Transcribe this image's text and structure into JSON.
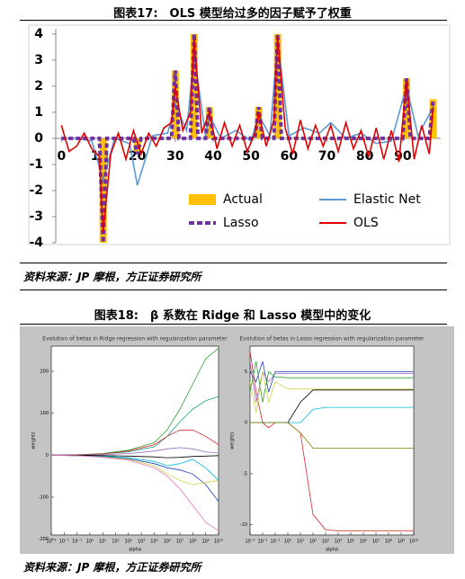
{
  "document": {
    "figure17_title": "图表17:　OLS 模型给过多的因子赋予了权重",
    "source1": "资料来源：JP 摩根，方正证券研究所",
    "figure18_title": "图表18:　β 系数在 Ridge 和 Lasso 模型中的变化",
    "source2": "资料来源：JP 摩根，方正证券研究所"
  },
  "chart_data": [
    {
      "type": "combo",
      "xlim": [
        -1.5,
        100
      ],
      "ylim": [
        -4,
        4.2
      ],
      "xticks": [
        0,
        10,
        20,
        30,
        40,
        50,
        60,
        70,
        80,
        90
      ],
      "yticks": [
        -4,
        -3,
        -2,
        -1,
        0,
        1,
        2,
        3,
        4
      ],
      "legend": "lower right",
      "series": [
        {
          "name": "Actual",
          "style": "bar",
          "color": "#ffc000",
          "x": [
            11,
            20,
            30,
            35,
            39,
            52,
            57,
            91,
            98
          ],
          "values": [
            -4,
            -0.5,
            2.6,
            4,
            1.2,
            1.2,
            4,
            2.3,
            1.5
          ]
        },
        {
          "name": "Elastic Net",
          "style": "solid",
          "color": "#5b9bd5",
          "x": [
            0,
            4,
            8,
            11,
            14,
            18,
            20,
            24,
            28,
            30,
            33,
            35,
            38,
            39,
            42,
            46,
            50,
            52,
            55,
            57,
            60,
            64,
            68,
            71,
            75,
            79,
            83,
            87,
            91,
            94,
            98
          ],
          "values": [
            0,
            0,
            -0.1,
            -1.6,
            0,
            -0.2,
            -1.8,
            0.1,
            0.2,
            1.3,
            0.3,
            3.2,
            0.1,
            0.9,
            0,
            0.3,
            -0.1,
            0.9,
            0.1,
            3.8,
            0.1,
            0.4,
            0.2,
            0.6,
            0,
            0.2,
            -0.2,
            -0.1,
            2,
            0.1,
            1.2
          ]
        },
        {
          "name": "Lasso",
          "style": "dashed",
          "color": "#7030a0",
          "x": [
            0,
            10,
            11,
            12,
            19,
            20,
            21,
            29,
            30,
            31,
            34,
            35,
            36,
            38,
            39,
            40,
            51,
            52,
            53,
            56,
            57,
            58,
            90,
            91,
            92,
            97,
            98
          ],
          "values": [
            0,
            0,
            -4,
            0,
            0,
            -0.6,
            0,
            0,
            2.6,
            0,
            0,
            4,
            0,
            0,
            1.2,
            0,
            0,
            1.2,
            0,
            0,
            4,
            0,
            0,
            2.3,
            0,
            0,
            1.5
          ]
        },
        {
          "name": "OLS",
          "style": "solid",
          "color": "#e00000",
          "x": [
            0,
            2,
            4,
            6,
            8,
            10,
            11,
            13,
            15,
            17,
            19,
            21,
            23,
            25,
            27,
            29,
            30,
            32,
            34,
            35,
            37,
            39,
            41,
            43,
            45,
            47,
            49,
            51,
            52,
            54,
            56,
            57,
            59,
            61,
            63,
            65,
            67,
            69,
            71,
            73,
            75,
            77,
            79,
            81,
            83,
            85,
            87,
            89,
            91,
            93,
            95,
            97,
            98
          ],
          "values": [
            0.5,
            -0.5,
            -0.3,
            0.2,
            -0.4,
            -0.7,
            -3.6,
            -0.6,
            0.2,
            -0.8,
            0.3,
            -0.6,
            0.2,
            -0.3,
            0.4,
            0.6,
            2.0,
            0.3,
            1.0,
            3.8,
            0.2,
            1.0,
            -0.4,
            0.6,
            -0.3,
            0.5,
            -0.5,
            0.2,
            1.0,
            -0.3,
            0.7,
            3.9,
            0.4,
            -0.6,
            0.7,
            -0.4,
            0.5,
            -0.3,
            0.5,
            -0.5,
            0.6,
            -0.4,
            0.3,
            -0.7,
            0.4,
            -0.8,
            0.3,
            -0.9,
            2.2,
            -0.8,
            0.5,
            -0.6,
            1.2
          ]
        }
      ]
    },
    {
      "type": "line",
      "title": "Evolution of betas in Ridge regression with regularization parameter",
      "x_label": "alpha",
      "y_label": "weights",
      "xscale": "log",
      "xlim": [
        0.001,
        10000000000
      ],
      "ylim": [
        -190,
        260
      ],
      "yticks": [
        -200,
        -100,
        0,
        100,
        200
      ],
      "xticks": [
        {
          "value": 0.001,
          "label": "10⁻³"
        },
        {
          "value": 0.01,
          "label": "10⁻²"
        },
        {
          "value": 0.1,
          "label": "10⁻¹"
        },
        {
          "value": 1,
          "label": "10⁰"
        },
        {
          "value": 10,
          "label": "10¹"
        },
        {
          "value": 100,
          "label": "10²"
        },
        {
          "value": 1000,
          "label": "10³"
        },
        {
          "value": 10000,
          "label": "10⁴"
        },
        {
          "value": 100000,
          "label": "10⁵"
        },
        {
          "value": 1000000,
          "label": "10⁶"
        },
        {
          "value": 10000000,
          "label": "10⁷"
        },
        {
          "value": 100000000,
          "label": "10⁸"
        },
        {
          "value": 1000000000,
          "label": "10⁹"
        },
        {
          "value": 10000000000,
          "label": "10¹⁰"
        }
      ],
      "x": [
        0.001,
        0.1,
        10,
        1000,
        100000,
        1000000,
        10000000,
        100000000,
        1000000000,
        10000000000
      ],
      "series": [
        {
          "color": "#2ca02c",
          "values": [
            0,
            1,
            4,
            12,
            30,
            60,
            110,
            170,
            230,
            255
          ]
        },
        {
          "color": "#17a589",
          "values": [
            0,
            0,
            3,
            8,
            20,
            45,
            80,
            110,
            130,
            140
          ]
        },
        {
          "color": "#d62728",
          "values": [
            0,
            1,
            3,
            10,
            25,
            45,
            60,
            60,
            45,
            25
          ]
        },
        {
          "color": "#1f3fbf",
          "values": [
            0,
            -1,
            -3,
            -8,
            -20,
            -30,
            -35,
            -45,
            -70,
            -110
          ]
        },
        {
          "color": "#d4d040",
          "values": [
            0,
            -1,
            -4,
            -10,
            -25,
            -45,
            -60,
            -70,
            -65,
            -60
          ]
        },
        {
          "color": "#9467bd",
          "values": [
            0,
            0,
            1,
            4,
            10,
            15,
            18,
            15,
            8,
            5
          ]
        },
        {
          "color": "#00bcd4",
          "values": [
            0,
            -1,
            -2,
            -6,
            -15,
            -25,
            -20,
            -10,
            -30,
            -60
          ]
        },
        {
          "color": "#000000",
          "values": [
            0,
            0,
            -1,
            -2,
            -4,
            -6,
            -5,
            -3,
            -2,
            -1
          ]
        },
        {
          "color": "#e377c2",
          "values": [
            0,
            -1,
            -5,
            -12,
            -30,
            -50,
            -80,
            -120,
            -160,
            -180
          ]
        }
      ]
    },
    {
      "type": "line",
      "title": "Evolution of betas in Lasso regression with regularization parameter",
      "x_label": "alpha",
      "y_label": "weights",
      "xscale": "log",
      "xlim": [
        0.001,
        10000000000
      ],
      "ylim": [
        -11,
        7.5
      ],
      "yticks": [
        -10,
        -5,
        0,
        5
      ],
      "xticks": [
        {
          "value": 0.001,
          "label": "10⁻³"
        },
        {
          "value": 0.01,
          "label": "10⁻²"
        },
        {
          "value": 0.1,
          "label": "10⁻¹"
        },
        {
          "value": 1,
          "label": "10⁰"
        },
        {
          "value": 10,
          "label": "10¹"
        },
        {
          "value": 100,
          "label": "10²"
        },
        {
          "value": 1000,
          "label": "10³"
        },
        {
          "value": 10000,
          "label": "10⁴"
        },
        {
          "value": 100000,
          "label": "10⁵"
        },
        {
          "value": 1000000,
          "label": "10⁶"
        },
        {
          "value": 10000000,
          "label": "10⁷"
        },
        {
          "value": 100000000,
          "label": "10⁸"
        },
        {
          "value": 1000000000,
          "label": "10⁹"
        },
        {
          "value": 10000000000,
          "label": "10¹⁰"
        }
      ],
      "x": [
        0.001,
        0.003,
        0.01,
        0.03,
        0.1,
        1,
        10,
        100,
        1000,
        10000,
        1000000,
        10000000000
      ],
      "series": [
        {
          "color": "#d62728",
          "values": [
            7,
            3,
            0,
            -0.5,
            0,
            0,
            -1,
            -9,
            -10.5,
            -10.6,
            -10.6,
            -10.6
          ]
        },
        {
          "color": "#1f3fbf",
          "values": [
            5,
            4,
            6,
            3,
            5,
            5,
            5,
            5,
            5,
            5,
            5,
            5
          ]
        },
        {
          "color": "#9467bd",
          "values": [
            6,
            2,
            5,
            4,
            4.8,
            4.8,
            4.8,
            4.8,
            4.8,
            4.8,
            4.8,
            4.8
          ]
        },
        {
          "color": "#2ca02c",
          "values": [
            3,
            6,
            2,
            5,
            4.5,
            4.4,
            4.4,
            4.4,
            4.4,
            4.4,
            4.4,
            4.4
          ]
        },
        {
          "color": "#000000",
          "values": [
            0,
            0,
            0,
            0,
            0,
            0,
            2,
            3.2,
            3.2,
            3.2,
            3.2,
            3.2
          ]
        },
        {
          "color": "#00bcd4",
          "values": [
            0,
            0,
            0,
            0,
            0,
            0,
            0,
            1.3,
            1.5,
            1.5,
            1.5,
            1.5
          ]
        },
        {
          "color": "#808000",
          "values": [
            0,
            0,
            0,
            0,
            0,
            0,
            -1,
            -2.5,
            -2.5,
            -2.5,
            -2.5,
            -2.5
          ]
        },
        {
          "color": "#d4d040",
          "values": [
            4,
            1,
            5,
            2,
            4,
            3.3,
            3.3,
            3.3,
            3.3,
            3.3,
            3.3,
            3.3
          ]
        }
      ]
    }
  ]
}
